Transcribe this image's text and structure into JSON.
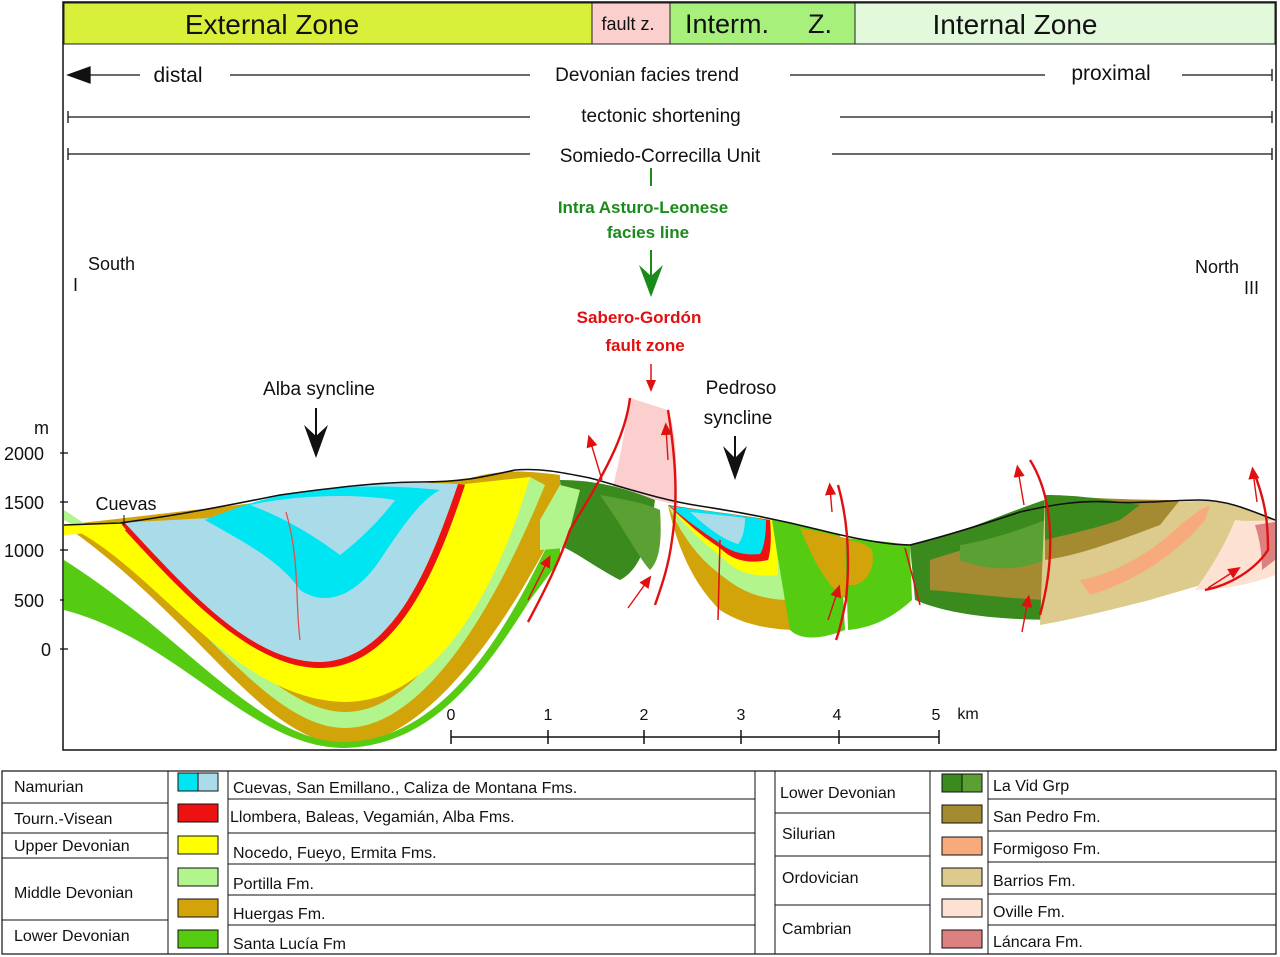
{
  "zones": {
    "external": "External Zone",
    "fault": "fault z.",
    "intermediate_a": "Interm.",
    "intermediate_b": "Z.",
    "internal": "Internal Zone"
  },
  "trend": {
    "distal": "distal",
    "devonian": "Devonian facies trend",
    "proximal": "proximal",
    "shortening": "tectonic shortening",
    "unit": "Somiedo-Correcilla Unit"
  },
  "annotations": {
    "facies_line_1": "Intra Asturo-Leonese",
    "facies_line_2": "facies line",
    "fault_zone_1": "Sabero-Gordón",
    "fault_zone_2": "fault zone",
    "south": "South",
    "north": "North",
    "mark_left": "I",
    "mark_right": "III",
    "alba": "Alba syncline",
    "pedroso_1": "Pedroso",
    "pedroso_2": "syncline",
    "cuevas": "Cuevas"
  },
  "elevation_axis": {
    "unit": "m",
    "ticks": [
      "2000",
      "1500",
      "1000",
      "500",
      "0"
    ]
  },
  "scale_bar": {
    "ticks": [
      "0",
      "1",
      "2",
      "3",
      "4",
      "5"
    ],
    "unit": "km"
  },
  "legend_left": {
    "periods": [
      "Namurian",
      "Tourn.-Visean",
      "Upper Devonian",
      "Middle Devonian",
      "Lower Devonian"
    ],
    "formations": [
      "Cuevas, San Emillano., Caliza de Montana Fms.",
      "Llombera, Baleas, Vegamián, Alba Fms.",
      "Nocedo, Fueyo, Ermita Fms.",
      "Portilla Fm.",
      "Huergas Fm.",
      "Santa Lucía Fm"
    ]
  },
  "legend_right": {
    "periods": [
      "Lower Devonian",
      "Silurian",
      "Ordovician",
      "Cambrian"
    ],
    "formations": [
      "La Vid Grp",
      "San Pedro Fm.",
      "Formigoso Fm.",
      "Barrios Fm.",
      "Oville Fm.",
      "Láncara Fm."
    ]
  },
  "colors": {
    "external_zone": "#d8f03a",
    "fault_zone": "#fccfcf",
    "intermediate_zone": "#a8f07c",
    "internal_zone": "#e2fadb",
    "namurian_cyan": "#00e5f2",
    "namurian_lightblue": "#a9dbe8",
    "tourn_visean_red": "#ee1111",
    "upper_devonian_yellow": "#ffff00",
    "portilla_lightgreen": "#b2f58c",
    "huergas_ochre": "#d2a40a",
    "santa_lucia_green": "#55cc11",
    "la_vid_dark": "#3a8a1e",
    "la_vid_mid": "#5aa032",
    "san_pedro": "#a48a30",
    "formigoso": "#f7aa7c",
    "barrios": "#dccb8c",
    "oville": "#fde1d2",
    "lancara": "#dc8080",
    "facies_line_green": "#1a8a1a",
    "fault_red": "#e01010"
  }
}
